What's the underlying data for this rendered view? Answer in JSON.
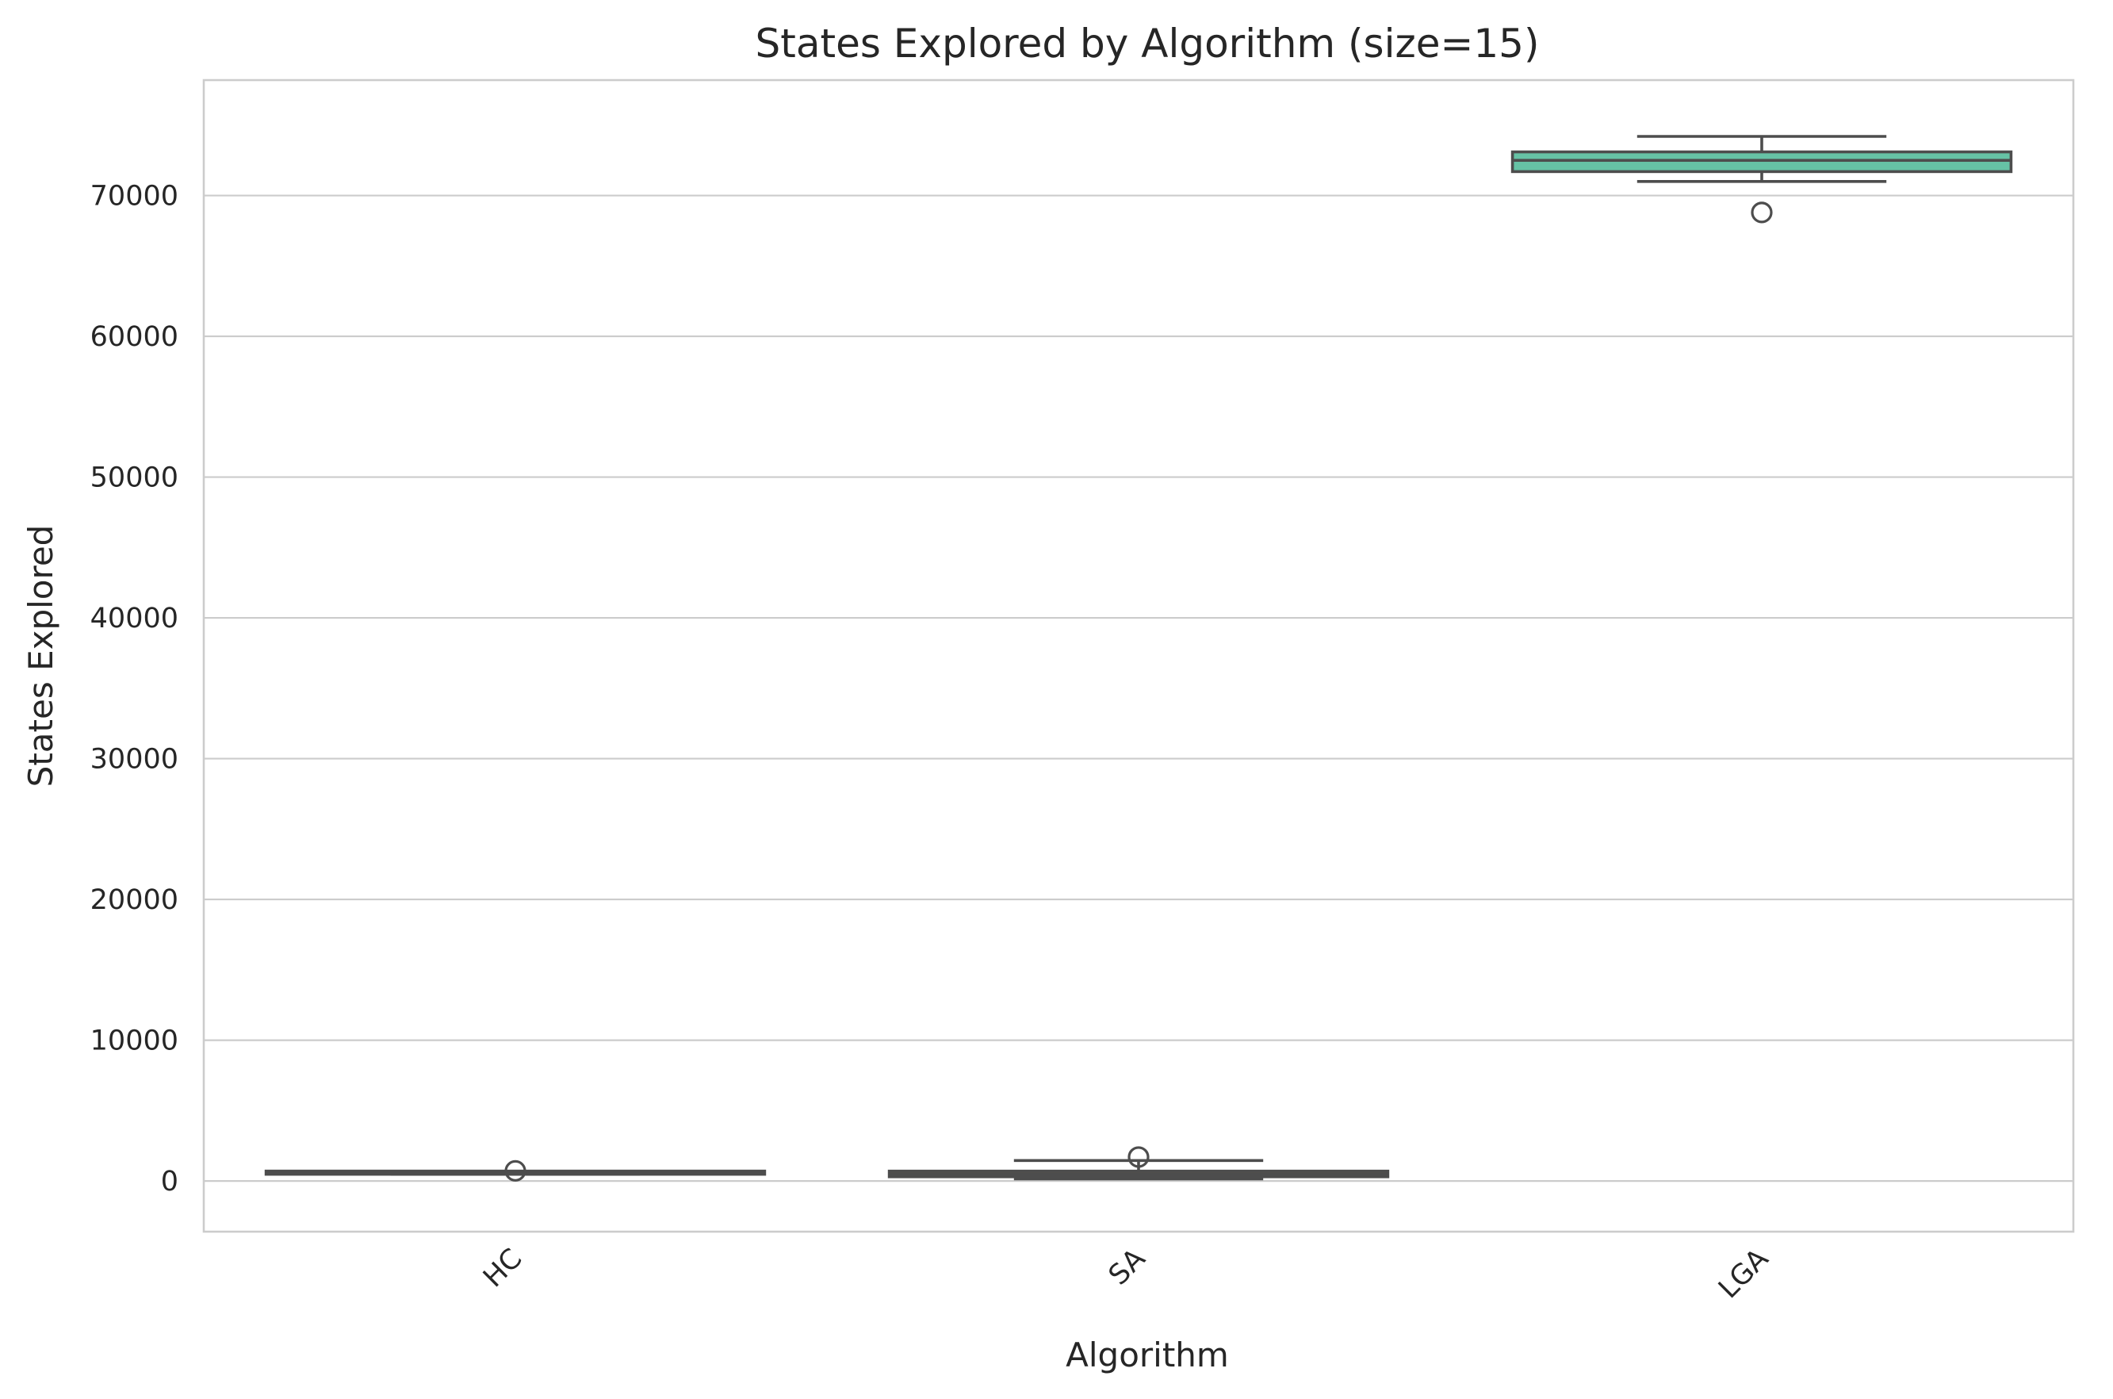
{
  "chart_data": {
    "type": "box",
    "title": "States Explored by Algorithm (size=15)",
    "xlabel": "Algorithm",
    "ylabel": "States Explored",
    "categories": [
      "HC",
      "SA",
      "LGA"
    ],
    "yticks": [
      0,
      10000,
      20000,
      30000,
      40000,
      50000,
      60000,
      70000
    ],
    "ylim": [
      -3600,
      78200
    ],
    "grid": "horizontal",
    "legend": "none",
    "xtick_rotation": 45,
    "boxes": [
      {
        "category": "HC",
        "whisker_low": 480,
        "q1": 530,
        "median": 560,
        "q3": 650,
        "whisker_high": 680,
        "outliers": [
          720
        ],
        "color": "#66c2a5"
      },
      {
        "category": "SA",
        "whisker_low": 150,
        "q1": 300,
        "median": 500,
        "q3": 700,
        "whisker_high": 1450,
        "outliers": [
          1700
        ],
        "color": "#fc8d62"
      },
      {
        "category": "LGA",
        "whisker_low": 71000,
        "q1": 71700,
        "median": 72500,
        "q3": 73100,
        "whisker_high": 74200,
        "outliers": [
          68800
        ],
        "color": "#66c2a5"
      }
    ],
    "line_color": "#4d4d4d"
  }
}
